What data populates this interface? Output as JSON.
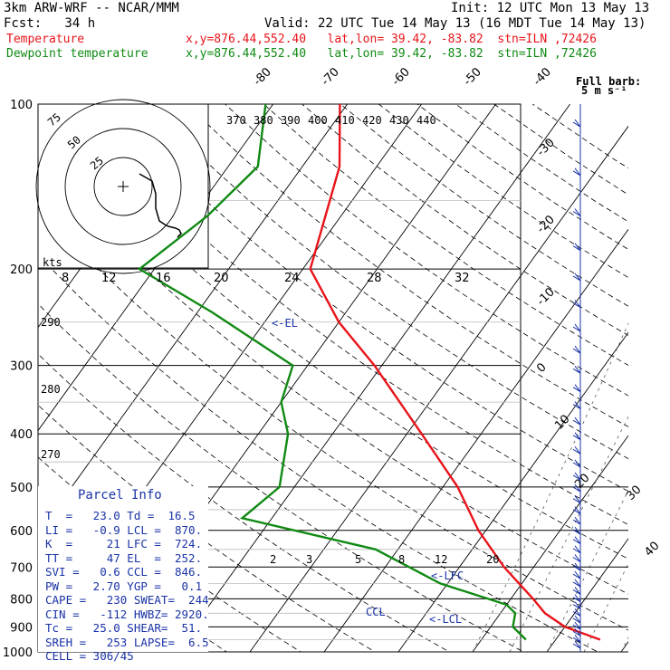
{
  "header": {
    "model": "3km ARW-WRF -- NCAR/MMM",
    "init": "Init: 12 UTC Mon 13 May 13",
    "fcst": "Fcst:   34 h",
    "valid": "Valid: 22 UTC Tue 14 May 13 (16 MDT Tue 14 May 13)",
    "temp_label": "Temperature",
    "dew_label": "Dewpoint temperature",
    "location_line": "x,y=876.44,552.40   lat,lon= 39.42, -83.82  stn=ILN ,72426",
    "temp_color": "#e8141a",
    "dew_color": "#108a14"
  },
  "chart_data": {
    "type": "line",
    "pressure_ticks": [
      "100",
      "200",
      "300",
      "400",
      "500",
      "600",
      "700",
      "800",
      "900",
      "1000"
    ],
    "isotherm_labels": [
      "-80",
      "-70",
      "-60",
      "-50",
      "-40",
      "-30",
      "-20",
      "-10",
      "0",
      "10",
      "20",
      "30",
      "40"
    ],
    "theta_labels": [
      "370",
      "380",
      "390",
      "400",
      "410",
      "420",
      "430",
      "440"
    ],
    "theta_side_labels": [
      "290",
      "280",
      "270"
    ],
    "mixing_ratio_labels": [
      "2",
      "3",
      "5",
      "8",
      "12",
      "20"
    ],
    "inset_speed_labels": [
      "8",
      "12",
      "16",
      "20",
      "24",
      "28",
      "32"
    ],
    "hodo_ring_labels": [
      "75",
      "50",
      "25"
    ],
    "hodo_unit": "kts",
    "barb_title": "Full barb:",
    "barb_unit": "5 m s⁻¹",
    "annotations": [
      "<-EL",
      "<-LFC",
      "<-LCL",
      "CCL"
    ],
    "series": [
      {
        "name": "Temperature",
        "color": "#e8141a",
        "points": [
          [
            100,
            -61
          ],
          [
            130,
            -55
          ],
          [
            150,
            -53
          ],
          [
            200,
            -49
          ],
          [
            250,
            -40
          ],
          [
            300,
            -31
          ],
          [
            400,
            -18
          ],
          [
            500,
            -8
          ],
          [
            600,
            -1
          ],
          [
            700,
            6
          ],
          [
            800,
            13
          ],
          [
            850,
            16
          ],
          [
            900,
            20
          ],
          [
            950,
            26
          ]
        ]
      },
      {
        "name": "Dewpoint temperature",
        "color": "#108a14",
        "points": [
          [
            100,
            -71
          ],
          [
            130,
            -66
          ],
          [
            160,
            -68
          ],
          [
            200,
            -72
          ],
          [
            240,
            -58
          ],
          [
            300,
            -42
          ],
          [
            350,
            -40
          ],
          [
            400,
            -36
          ],
          [
            500,
            -32
          ],
          [
            570,
            -34
          ],
          [
            650,
            -13
          ],
          [
            750,
            -1
          ],
          [
            820,
            10
          ],
          [
            850,
            12
          ],
          [
            900,
            13
          ],
          [
            950,
            16
          ]
        ]
      }
    ]
  },
  "parcel": {
    "title": "Parcel Info",
    "rows": [
      "T  =   23.0 Td =  16.5",
      "LI =   -0.9 LCL =  870.",
      "K  =     21 LFC =  724.",
      "TT =     47 EL  =  252.",
      "SVI =   0.6 CCL =  846.",
      "PW =   2.70 YGP =   0.1",
      "CAPE =   230 SWEAT=  244",
      "CIN =   -112 HWBZ= 2920.",
      "Tc =   25.0 SHEAR=  51.",
      "SREH =   253 LAPSE=  6.5",
      "CELL = 306/45"
    ]
  }
}
